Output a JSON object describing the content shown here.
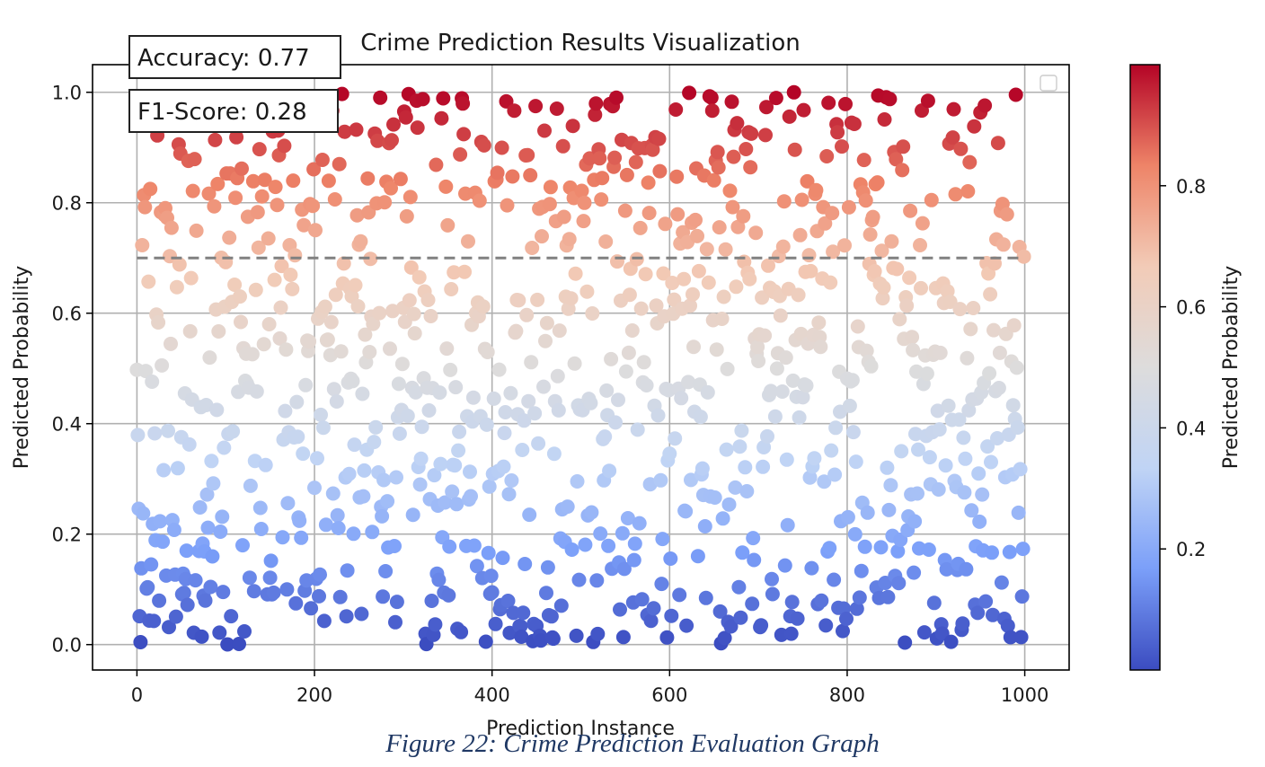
{
  "chart_data": {
    "type": "scatter",
    "title": "Crime Prediction Results Visualization",
    "xlabel": "Prediction Instance",
    "ylabel": "Predicted Probability",
    "xlim": [
      -50,
      1050
    ],
    "ylim": [
      -0.046,
      1.05
    ],
    "xticks": [
      "0",
      "200",
      "400",
      "600",
      "800",
      "1000"
    ],
    "yticks": [
      "0.0",
      "0.2",
      "0.4",
      "0.6",
      "0.8",
      "1.0"
    ],
    "grid": true,
    "n_points": 1000,
    "x_range": [
      0,
      999
    ],
    "y_range": [
      0.0,
      1.0
    ],
    "threshold": 0.7,
    "legend": "top-right (empty)",
    "annotations": [
      "Accuracy: 0.77",
      "F1-Score: 0.28"
    ],
    "colormap": "coolwarm",
    "colorbar": {
      "label": "Predicted Probability",
      "ticks": [
        "0.2",
        "0.4",
        "0.6",
        "0.8"
      ],
      "range": [
        0.0,
        1.0
      ],
      "colors": [
        "#3b4cc0",
        "#7b9ff9",
        "#c0d4f5",
        "#dddcdc",
        "#f2cbb7",
        "#ee8468",
        "#b40426"
      ]
    }
  },
  "caption": "Figure 22: Crime Prediction Evaluation Graph"
}
